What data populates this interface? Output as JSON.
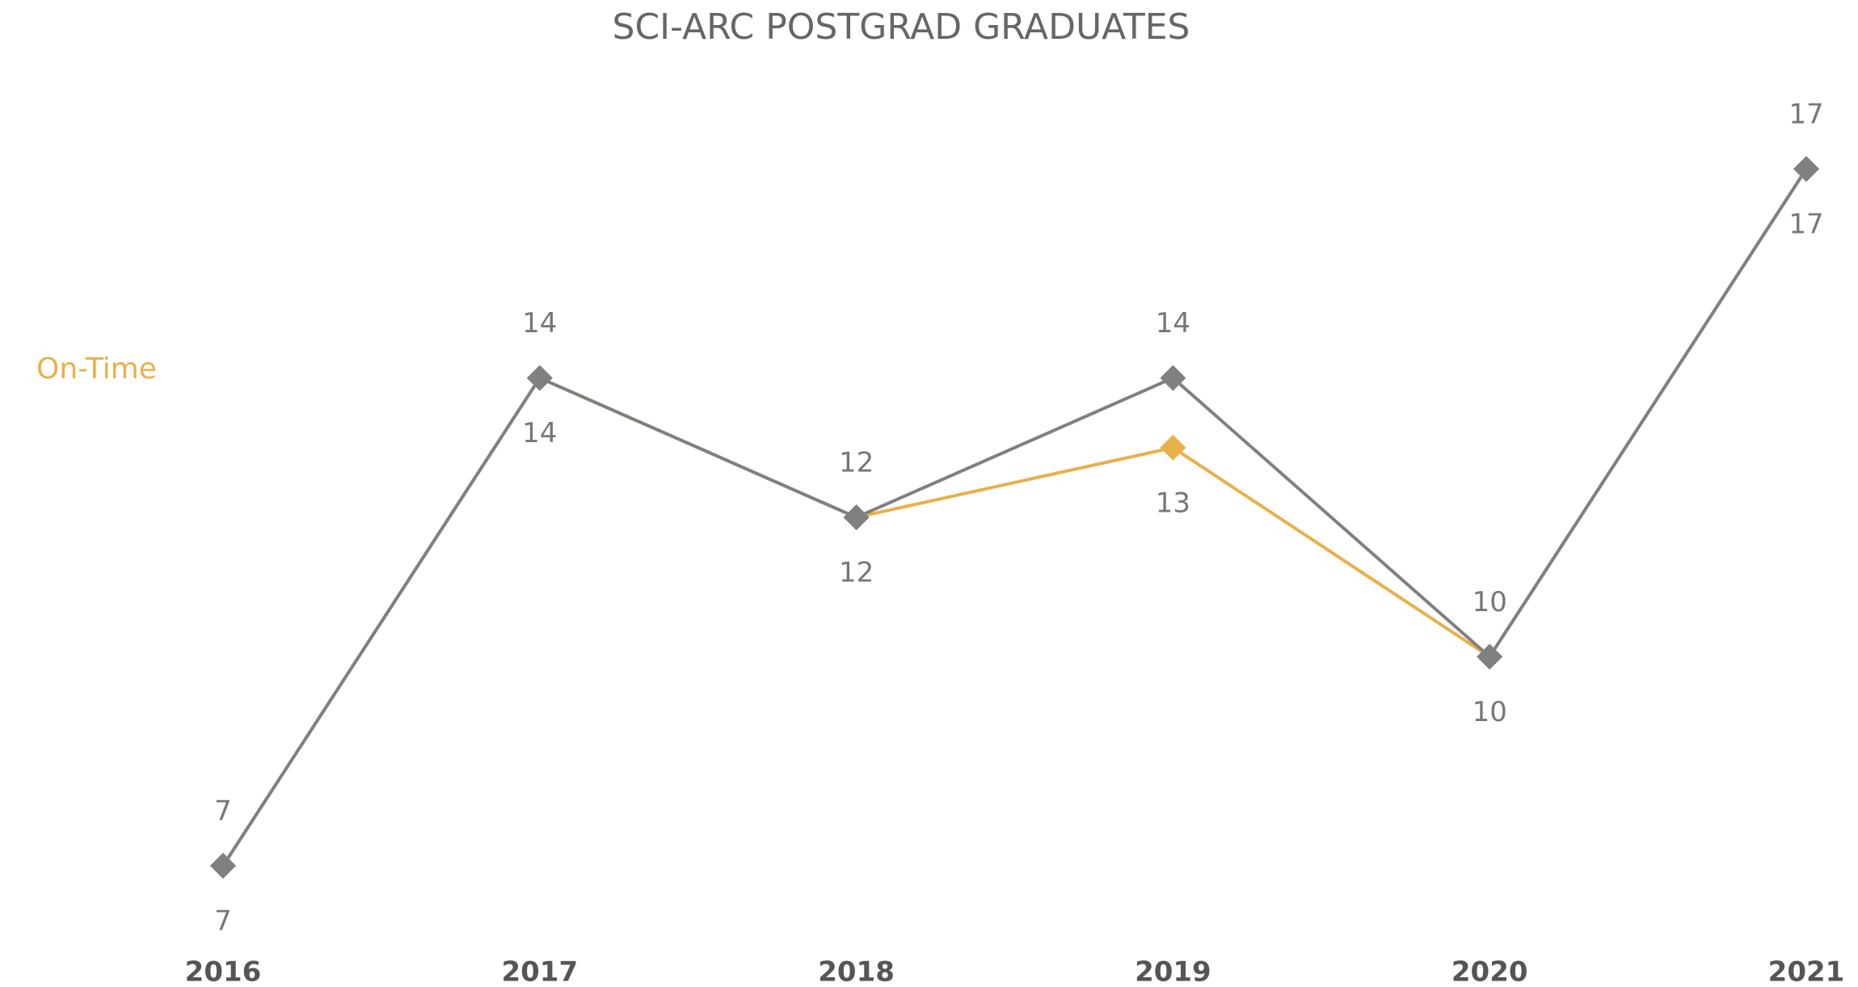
{
  "chart_data": {
    "type": "line",
    "title": "SCI-ARC POSTGRAD GRADUATES",
    "categories": [
      "2016",
      "2017",
      "2018",
      "2019",
      "2020",
      "2021"
    ],
    "series": [
      {
        "name": "On-Time",
        "color": "#E8B04B",
        "values": [
          7,
          14,
          12,
          13,
          10,
          17
        ]
      },
      {
        "color": "#808080",
        "values": [
          7,
          14,
          12,
          14,
          10,
          17
        ]
      }
    ],
    "ylim": [
      7,
      17
    ],
    "legend": "left"
  }
}
